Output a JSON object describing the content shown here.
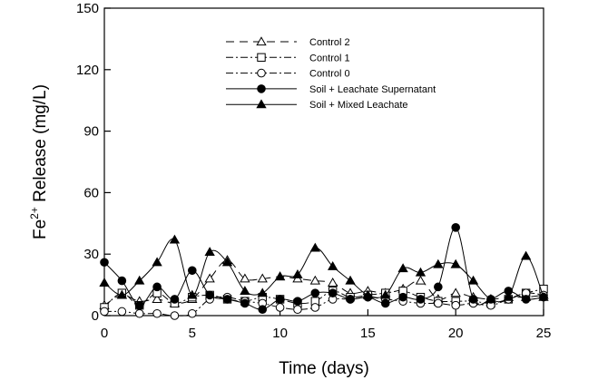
{
  "chart_data": {
    "type": "line",
    "title": "",
    "xlabel": "Time (days)",
    "ylabel_prefix": "Fe",
    "ylabel_superscript": "2+",
    "ylabel_suffix": " Release (mg/L)",
    "xlim": [
      0,
      25
    ],
    "ylim": [
      0,
      150
    ],
    "xticks": [
      0,
      5,
      10,
      15,
      20,
      25
    ],
    "yticks": [
      0,
      30,
      60,
      90,
      120,
      150
    ],
    "grid": false,
    "legend_position": "top-center",
    "series": [
      {
        "name": "Control 2",
        "marker": "open-triangle",
        "line_style": "long-dash",
        "color": "#000000",
        "x": [
          0,
          1,
          2,
          3,
          4,
          5,
          6,
          7,
          8,
          9,
          10,
          11,
          12,
          13,
          14,
          15,
          16,
          17,
          18,
          19,
          20,
          21,
          22,
          23,
          24,
          25
        ],
        "y": [
          5,
          10,
          7,
          8,
          6,
          8,
          18,
          27,
          18,
          18,
          19,
          18,
          17,
          16,
          11,
          12,
          11,
          13,
          17,
          8,
          11,
          9,
          8,
          9,
          9,
          10
        ]
      },
      {
        "name": "Control 1",
        "marker": "open-square",
        "line_style": "dash-dot",
        "color": "#000000",
        "x": [
          0,
          1,
          2,
          3,
          4,
          5,
          6,
          7,
          8,
          9,
          10,
          11,
          12,
          13,
          14,
          15,
          16,
          17,
          18,
          19,
          20,
          21,
          22,
          23,
          24,
          25
        ],
        "y": [
          4,
          11,
          5,
          11,
          6,
          9,
          10,
          8,
          7,
          9,
          8,
          6,
          7,
          12,
          9,
          10,
          11,
          12,
          9,
          7,
          7,
          7,
          6,
          8,
          11,
          13
        ]
      },
      {
        "name": "Control 0",
        "marker": "open-circle",
        "line_style": "dash-dot",
        "color": "#000000",
        "x": [
          0,
          1,
          2,
          3,
          4,
          5,
          6,
          7,
          8,
          9,
          10,
          11,
          12,
          13,
          14,
          15,
          16,
          17,
          18,
          19,
          20,
          21,
          22,
          23,
          24,
          25
        ],
        "y": [
          2,
          2,
          1,
          1,
          0,
          1,
          8,
          9,
          7,
          6,
          4,
          3,
          4,
          8,
          8,
          9,
          8,
          7,
          6,
          6,
          5,
          6,
          5,
          8,
          11,
          10
        ]
      },
      {
        "name": "Soil + Leachate Supernatant",
        "marker": "filled-circle",
        "line_style": "solid",
        "color": "#000000",
        "x": [
          0,
          1,
          2,
          3,
          4,
          5,
          6,
          7,
          8,
          9,
          10,
          11,
          12,
          13,
          14,
          15,
          16,
          17,
          18,
          19,
          20,
          21,
          22,
          23,
          24,
          25
        ],
        "y": [
          26,
          17,
          5,
          14,
          8,
          22,
          10,
          8,
          6,
          3,
          8,
          7,
          11,
          11,
          8,
          9,
          6,
          9,
          8,
          14,
          43,
          8,
          8,
          12,
          8,
          9
        ]
      },
      {
        "name": "Soil + Mixed Leachate",
        "marker": "filled-triangle",
        "line_style": "solid",
        "color": "#000000",
        "x": [
          0,
          1,
          2,
          3,
          4,
          5,
          6,
          7,
          8,
          9,
          10,
          11,
          12,
          13,
          14,
          15,
          16,
          17,
          18,
          19,
          20,
          21,
          22,
          23,
          24,
          25
        ],
        "y": [
          16,
          10,
          17,
          26,
          37,
          10,
          31,
          26,
          12,
          11,
          19,
          20,
          33,
          24,
          17,
          10,
          10,
          23,
          21,
          25,
          25,
          17,
          8,
          9,
          29,
          9
        ]
      }
    ]
  }
}
